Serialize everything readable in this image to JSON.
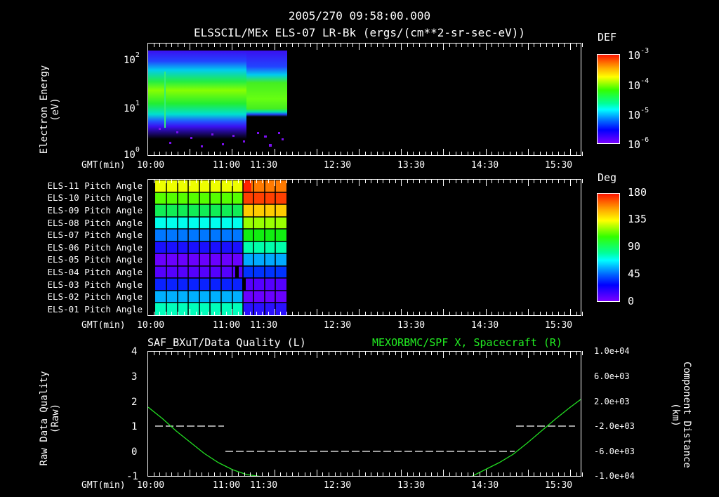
{
  "header": {
    "timestamp": "2005/270 09:58:00.000",
    "subtitle": "ELSSCIL/MEx ELS-07 LR-Bk  (ergs/(cm**2-sr-sec-eV))"
  },
  "panels": {
    "spectrogram": {
      "ylabel_line1": "Electron Energy",
      "ylabel_line2": "(eV)",
      "xaxis_label": "GMT(min)",
      "colorbar_title": "DEF"
    },
    "pitch": {
      "xaxis_label": "GMT(min)",
      "colorbar_title": "Deg"
    },
    "lineplot": {
      "left_title": "SAF_BXuT/Data Quality (L)",
      "right_title": "MEXORBMC/SPF X, Spacecraft (R)",
      "ylabel_left_line1": "Raw Data Quality",
      "ylabel_left_line2": "(Raw)",
      "ylabel_right_line1": "Component Distance",
      "ylabel_right_line2": "(km)",
      "xaxis_label": "GMT(min)"
    }
  },
  "colors": {
    "background": "#000000",
    "foreground": "#ffffff",
    "trace_green": "#22dd22"
  },
  "chart_data": [
    {
      "type": "heatmap",
      "title": "ELSSCIL/MEx ELS-07 LR-Bk (ergs/(cm**2-sr-sec-eV))",
      "xlabel": "GMT(min)",
      "ylabel": "Electron Energy (eV)",
      "x_ticks": [
        "10:00",
        "11:00",
        "11:30",
        "12:30",
        "13:30",
        "14:30",
        "15:30"
      ],
      "y_ticks": [
        "10^0",
        "10^1",
        "10^2"
      ],
      "yscale": "log",
      "ylim": [
        1,
        150
      ],
      "data_extent_x": [
        "10:00",
        "11:50"
      ],
      "colorbar": {
        "label": "DEF",
        "ticks": [
          "10^-6",
          "10^-5",
          "10^-4",
          "10^-3"
        ],
        "scale": "log"
      },
      "description": "Green band peaking ~15-30 eV; low-energy cutoff rises near 4 eV before 11:15 then shifts to ~5 eV after 11:15; sparse purple noise below 4 eV"
    },
    {
      "type": "heatmap",
      "title": "Pitch Angle",
      "xlabel": "GMT(min)",
      "x_ticks": [
        "10:00",
        "11:00",
        "11:30",
        "12:30",
        "13:30",
        "14:30",
        "15:30"
      ],
      "rows": [
        "ELS-11 Pitch Angle",
        "ELS-10 Pitch Angle",
        "ELS-09 Pitch Angle",
        "ELS-08 Pitch Angle",
        "ELS-07 Pitch Angle",
        "ELS-06 Pitch Angle",
        "ELS-05 Pitch Angle",
        "ELS-04 Pitch Angle",
        "ELS-03 Pitch Angle",
        "ELS-02 Pitch Angle",
        "ELS-01 Pitch Angle"
      ],
      "colorbar": {
        "label": "Deg",
        "ticks": [
          0,
          45,
          90,
          135,
          180
        ],
        "range": [
          0,
          180
        ]
      },
      "approx_values_before_1115": [
        140,
        115,
        100,
        75,
        50,
        25,
        15,
        20,
        25,
        50,
        70
      ],
      "approx_values_after_1120": [
        165,
        170,
        145,
        120,
        100,
        80,
        55,
        30,
        15,
        15,
        20
      ]
    },
    {
      "type": "line",
      "title_left": "SAF_BXuT/Data Quality (L)",
      "title_right": "MEXORBMC/SPF X, Spacecraft (R)",
      "xlabel": "GMT(min)",
      "ylabel": "Raw Data Quality (Raw)",
      "ylabel_right": "Component Distance (km)",
      "x_ticks": [
        "10:00",
        "11:00",
        "11:30",
        "12:30",
        "13:30",
        "14:30",
        "15:30"
      ],
      "ylim": [
        -1,
        4
      ],
      "y_ticks": [
        -1,
        0,
        1,
        2,
        3,
        4
      ],
      "ylim_right": [
        -10000,
        10000
      ],
      "y_ticks_right": [
        "1.0e+04",
        "6.0e+03",
        "2.0e+03",
        "-2.0e+03",
        "-6.0e+03",
        "-1.0e+04"
      ],
      "series": [
        {
          "name": "Data Quality",
          "axis": "left",
          "color": "#ffffff",
          "style": "dashed",
          "x": [
            "10:05",
            "11:00",
            "11:00",
            "14:55",
            "14:55",
            "15:50"
          ],
          "values": [
            1,
            1,
            0,
            0,
            1,
            1
          ]
        },
        {
          "name": "SPF X",
          "axis": "right",
          "color": "#22dd22",
          "x": [
            "10:00",
            "10:30",
            "11:00",
            "11:30",
            "14:25",
            "15:00",
            "15:30",
            "15:55"
          ],
          "values": [
            2800,
            -1000,
            -4800,
            -10000,
            -10000,
            -5000,
            -200,
            2800
          ]
        }
      ]
    }
  ]
}
